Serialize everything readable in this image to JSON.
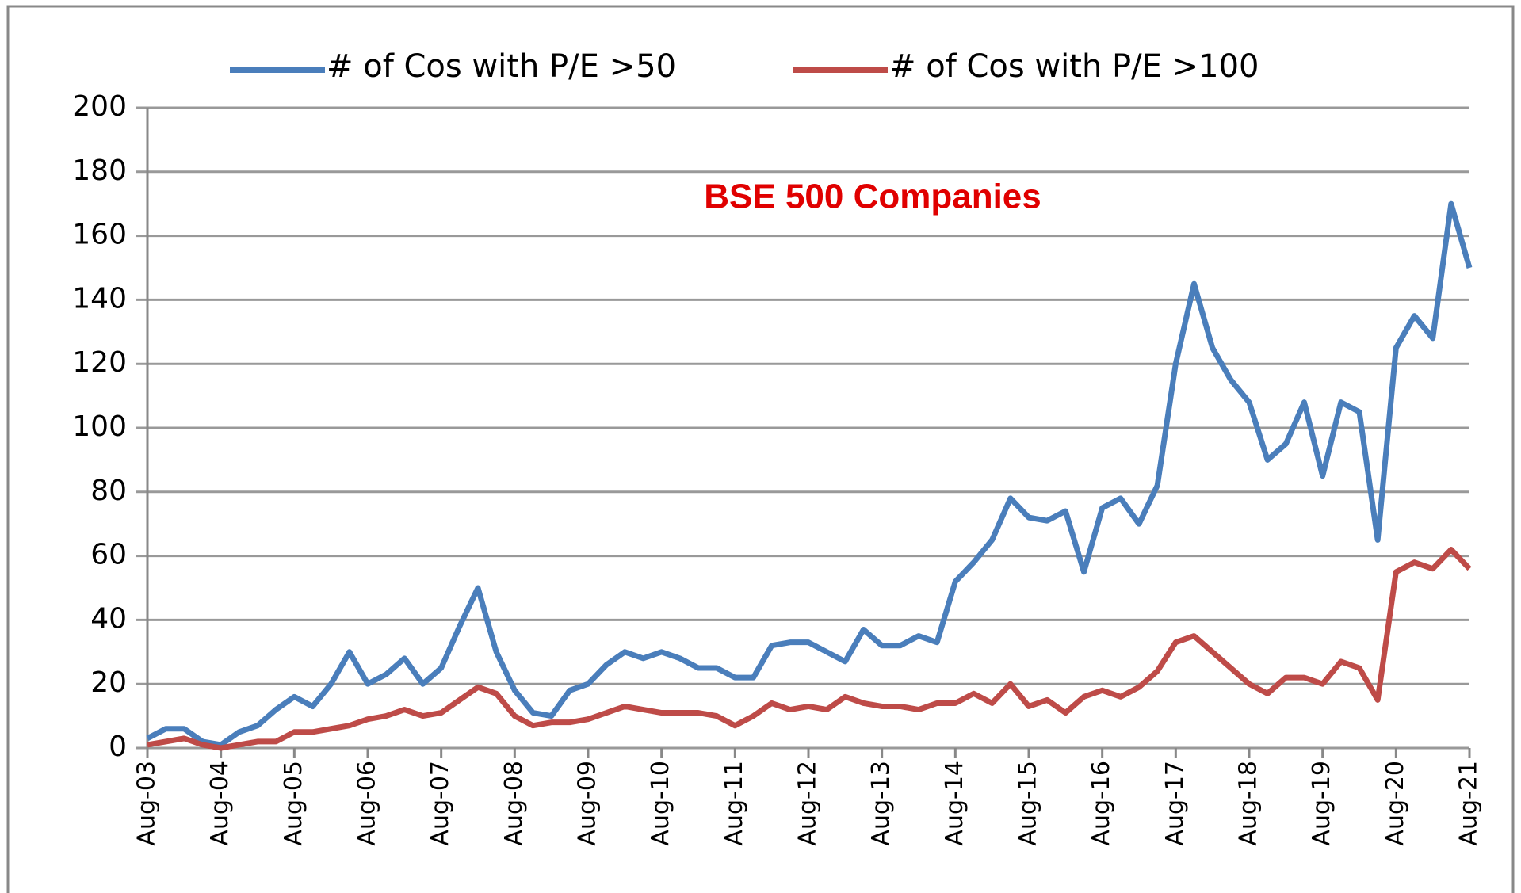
{
  "chart_data": {
    "type": "line",
    "annotation": "BSE 500 Companies",
    "categories": [
      "Aug-03",
      null,
      null,
      null,
      "Aug-04",
      null,
      null,
      null,
      "Aug-05",
      null,
      null,
      null,
      "Aug-06",
      null,
      null,
      null,
      "Aug-07",
      null,
      null,
      null,
      "Aug-08",
      null,
      null,
      null,
      "Aug-09",
      null,
      null,
      null,
      "Aug-10",
      null,
      null,
      null,
      "Aug-11",
      null,
      null,
      null,
      "Aug-12",
      null,
      null,
      null,
      "Aug-13",
      null,
      null,
      null,
      "Aug-14",
      null,
      null,
      null,
      "Aug-15",
      null,
      null,
      null,
      "Aug-16",
      null,
      null,
      null,
      "Aug-17",
      null,
      null,
      null,
      "Aug-18",
      null,
      null,
      null,
      "Aug-19",
      null,
      null,
      null,
      "Aug-20",
      null,
      null,
      null,
      "Aug-21"
    ],
    "series": [
      {
        "name": "# of Cos with P/E >50",
        "color": "#4a7ebb",
        "values": [
          3,
          6,
          6,
          2,
          1,
          5,
          7,
          12,
          16,
          13,
          20,
          30,
          20,
          23,
          28,
          20,
          25,
          38,
          50,
          30,
          18,
          11,
          10,
          18,
          20,
          26,
          30,
          28,
          30,
          28,
          25,
          25,
          22,
          22,
          32,
          33,
          33,
          30,
          27,
          37,
          32,
          32,
          35,
          33,
          52,
          58,
          65,
          78,
          72,
          71,
          74,
          55,
          75,
          78,
          70,
          82,
          120,
          145,
          125,
          115,
          108,
          90,
          95,
          108,
          85,
          108,
          105,
          65,
          125,
          135,
          128,
          170,
          150
        ]
      },
      {
        "name": "# of Cos with P/E >100",
        "color": "#be4b48",
        "values": [
          1,
          2,
          3,
          1,
          0,
          1,
          2,
          2,
          5,
          5,
          6,
          7,
          9,
          10,
          12,
          10,
          11,
          15,
          19,
          17,
          10,
          7,
          8,
          8,
          9,
          11,
          13,
          12,
          11,
          11,
          11,
          10,
          7,
          10,
          14,
          12,
          13,
          12,
          16,
          14,
          13,
          13,
          12,
          14,
          14,
          17,
          14,
          20,
          13,
          15,
          11,
          16,
          18,
          16,
          19,
          24,
          33,
          35,
          30,
          25,
          20,
          17,
          22,
          22,
          20,
          27,
          25,
          15,
          55,
          58,
          56,
          62,
          56
        ]
      }
    ],
    "ylim": [
      0,
      200
    ],
    "yticks": [
      0,
      20,
      40,
      60,
      80,
      100,
      120,
      140,
      160,
      180,
      200
    ],
    "grid": true,
    "legend": "top"
  }
}
